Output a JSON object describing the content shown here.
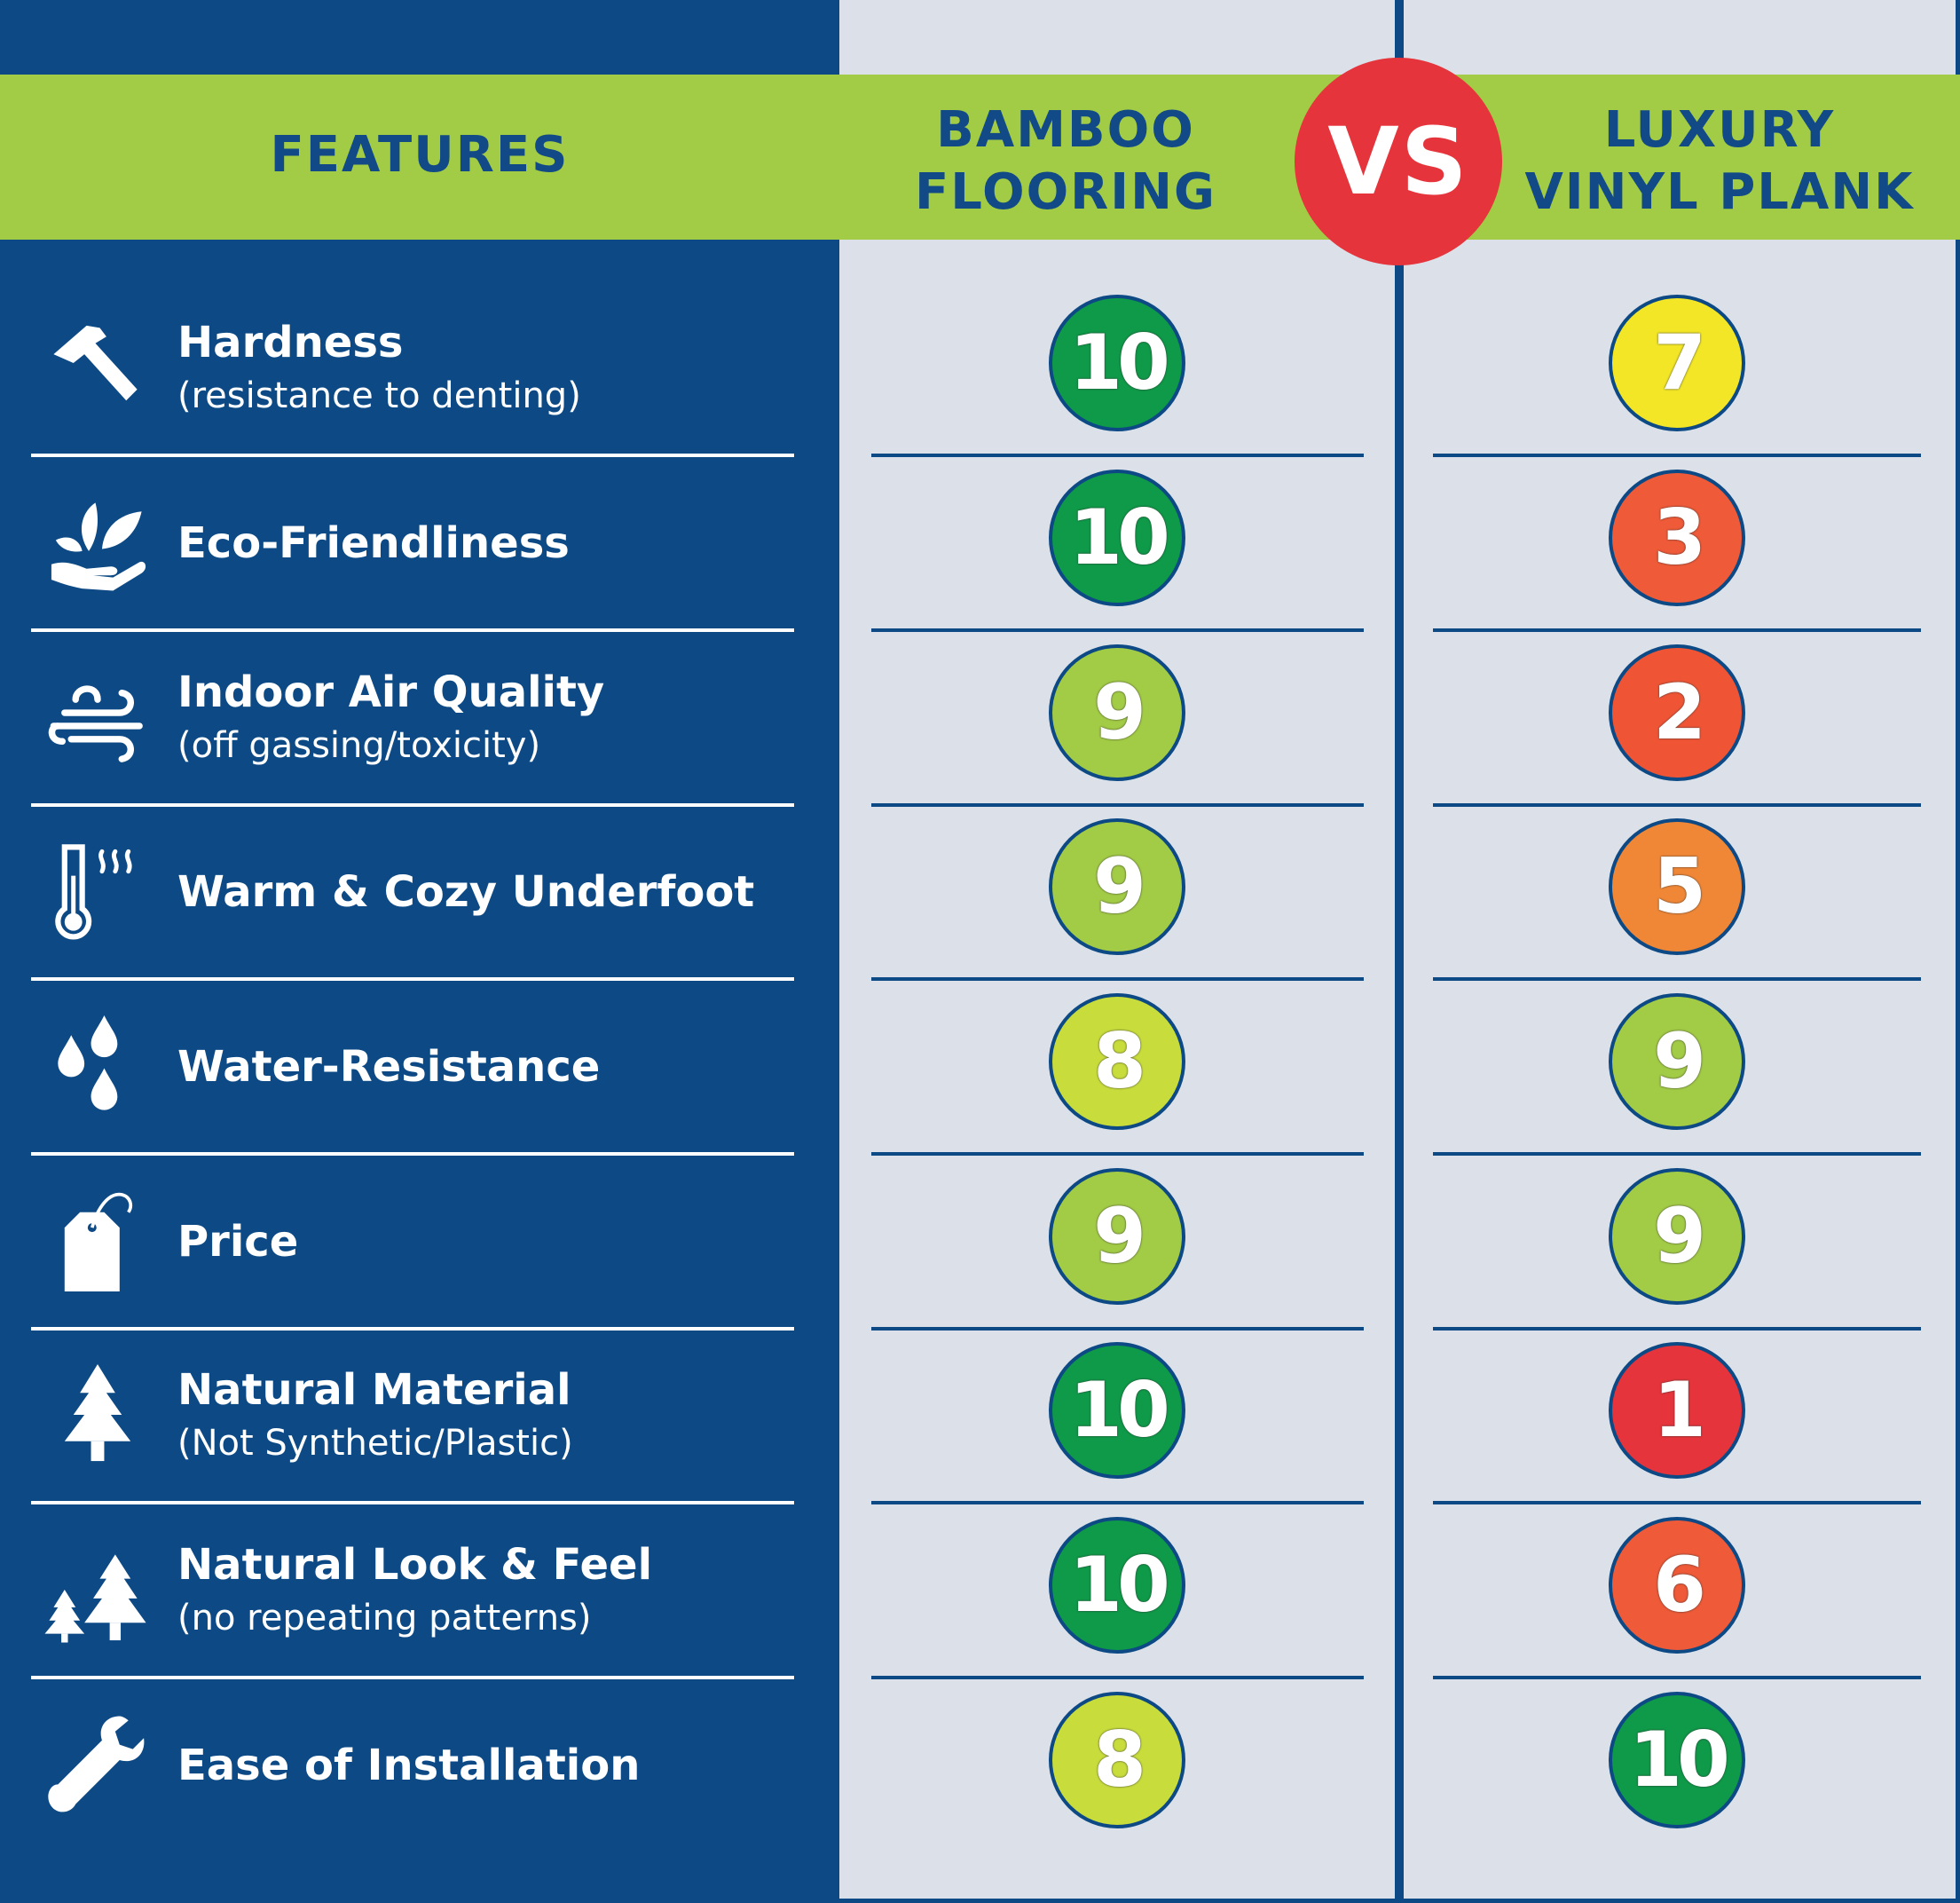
{
  "header": {
    "features_label": "FEATURES",
    "bamboo_label_line1": "BAMBOO",
    "bamboo_label_line2": "FLOORING",
    "vs_label": "VS",
    "vinyl_label_line1": "LUXURY",
    "vinyl_label_line2": "VINYL PLANK"
  },
  "colors": {
    "navy": "#0d4a85",
    "header_green": "#a2cb46",
    "panel_grey": "#dce1e9",
    "vs_red": "#e5343b"
  },
  "rows": [
    {
      "icon": "hammer-icon",
      "title": "Hardness",
      "subtitle": "(resistance to denting)",
      "bamboo": "10",
      "vinyl": "7",
      "bamboo_color": "#0e9a48",
      "vinyl_color": "#f2e627"
    },
    {
      "icon": "leaf-hand-icon",
      "title": "Eco-Friendliness",
      "subtitle": "",
      "bamboo": "10",
      "vinyl": "3",
      "bamboo_color": "#0e9a48",
      "vinyl_color": "#ef5a38"
    },
    {
      "icon": "air-wind-icon",
      "title": "Indoor Air Quality",
      "subtitle": "(off gassing/toxicity)",
      "bamboo": "9",
      "vinyl": "2",
      "bamboo_color": "#a2cb46",
      "vinyl_color": "#ef5535"
    },
    {
      "icon": "thermometer-icon",
      "title": "Warm & Cozy Underfoot",
      "subtitle": "",
      "bamboo": "9",
      "vinyl": "5",
      "bamboo_color": "#a2cb46",
      "vinyl_color": "#f08736"
    },
    {
      "icon": "water-drops-icon",
      "title": "Water-Resistance",
      "subtitle": "",
      "bamboo": "8",
      "vinyl": "9",
      "bamboo_color": "#c8dc3c",
      "vinyl_color": "#a2cb46"
    },
    {
      "icon": "price-tag-icon",
      "title": "Price",
      "subtitle": "",
      "bamboo": "9",
      "vinyl": "9",
      "bamboo_color": "#a2cb46",
      "vinyl_color": "#a2cb46"
    },
    {
      "icon": "pine-tree-icon",
      "title": "Natural Material",
      "subtitle": "(Not Synthetic/Plastic)",
      "bamboo": "10",
      "vinyl": "1",
      "bamboo_color": "#0e9a48",
      "vinyl_color": "#e5343b"
    },
    {
      "icon": "two-trees-icon",
      "title": "Natural Look & Feel",
      "subtitle": "(no repeating patterns)",
      "bamboo": "10",
      "vinyl": "6",
      "bamboo_color": "#0e9a48",
      "vinyl_color": "#ef5a38"
    },
    {
      "icon": "wrench-icon",
      "title": "Ease of Installation",
      "subtitle": "",
      "bamboo": "8",
      "vinyl": "10",
      "bamboo_color": "#c8dc3c",
      "vinyl_color": "#0e9a48"
    }
  ]
}
